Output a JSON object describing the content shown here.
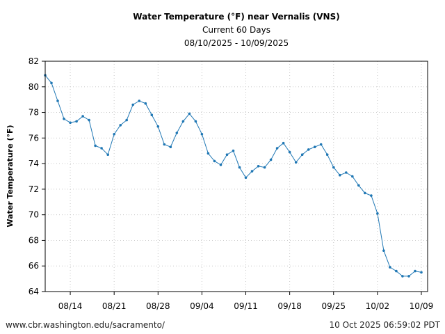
{
  "footer": {
    "source": "www.cbr.washington.edu/sacramento/",
    "timestamp": "10 Oct 2025 06:59:02 PDT"
  },
  "colors": {
    "series": "#1f77b4",
    "grid": "#c8c8c8",
    "axis": "#000000"
  },
  "chart_data": {
    "type": "line",
    "title": "Water Temperature (°F) near Vernalis (VNS)",
    "subtitle": "Current 60 Days",
    "date_range": "08/10/2025 - 10/09/2025",
    "xlabel": "",
    "ylabel": "Water Temperature (°F)",
    "ylim": [
      64,
      82
    ],
    "yticks": [
      64,
      66,
      68,
      70,
      72,
      74,
      76,
      78,
      80,
      82
    ],
    "xlim": [
      "2025-08-10",
      "2025-10-10"
    ],
    "xticks": [
      {
        "date": "2025-08-14",
        "label": "08/14"
      },
      {
        "date": "2025-08-21",
        "label": "08/21"
      },
      {
        "date": "2025-08-28",
        "label": "08/28"
      },
      {
        "date": "2025-09-04",
        "label": "09/04"
      },
      {
        "date": "2025-09-11",
        "label": "09/11"
      },
      {
        "date": "2025-09-18",
        "label": "09/18"
      },
      {
        "date": "2025-09-25",
        "label": "09/25"
      },
      {
        "date": "2025-10-02",
        "label": "10/02"
      },
      {
        "date": "2025-10-09",
        "label": "10/09"
      }
    ],
    "grid": "dotted",
    "series": [
      {
        "x": [
          "2025-08-10",
          "2025-08-11",
          "2025-08-12",
          "2025-08-13",
          "2025-08-14",
          "2025-08-15",
          "2025-08-16",
          "2025-08-17",
          "2025-08-18",
          "2025-08-19",
          "2025-08-20",
          "2025-08-21",
          "2025-08-22",
          "2025-08-23",
          "2025-08-24",
          "2025-08-25",
          "2025-08-26",
          "2025-08-27",
          "2025-08-28",
          "2025-08-29",
          "2025-08-30",
          "2025-08-31",
          "2025-09-01",
          "2025-09-02",
          "2025-09-03",
          "2025-09-04",
          "2025-09-05",
          "2025-09-06",
          "2025-09-07",
          "2025-09-08",
          "2025-09-09",
          "2025-09-10",
          "2025-09-11",
          "2025-09-12",
          "2025-09-13",
          "2025-09-14",
          "2025-09-15",
          "2025-09-16",
          "2025-09-17",
          "2025-09-18",
          "2025-09-19",
          "2025-09-20",
          "2025-09-21",
          "2025-09-22",
          "2025-09-23",
          "2025-09-24",
          "2025-09-25",
          "2025-09-26",
          "2025-09-27",
          "2025-09-28",
          "2025-09-29",
          "2025-09-30",
          "2025-10-01",
          "2025-10-02",
          "2025-10-03",
          "2025-10-04",
          "2025-10-05",
          "2025-10-06",
          "2025-10-07",
          "2025-10-08",
          "2025-10-09"
        ],
        "values": [
          80.9,
          80.3,
          78.9,
          77.5,
          77.2,
          77.3,
          77.7,
          77.4,
          75.4,
          75.2,
          74.7,
          76.3,
          77.0,
          77.4,
          78.6,
          78.9,
          78.7,
          77.8,
          76.9,
          75.5,
          75.3,
          76.4,
          77.3,
          77.9,
          77.3,
          76.3,
          74.8,
          74.2,
          73.9,
          74.7,
          75.0,
          73.7,
          72.9,
          73.4,
          73.8,
          73.7,
          74.3,
          75.2,
          75.6,
          74.9,
          74.1,
          74.7,
          75.1,
          75.3,
          75.5,
          74.7,
          73.7,
          73.1,
          73.3,
          73.0,
          72.3,
          71.7,
          71.5,
          70.1,
          67.2,
          65.9,
          65.6,
          65.2,
          65.2,
          65.6,
          65.5
        ]
      }
    ]
  }
}
